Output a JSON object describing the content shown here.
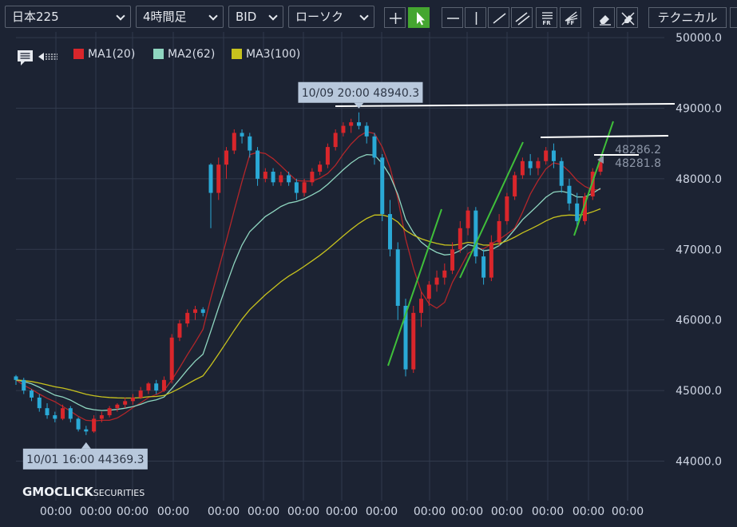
{
  "toolbar": {
    "instrument": "日本225",
    "timeframe": "4時間足",
    "price_type": "BID",
    "chart_style": "ローソク",
    "technical_label": "テクニカル",
    "fr_label": "FR",
    "ff_label": "FF"
  },
  "logo": {
    "main": "GMOCLICK",
    "sub": "SECURITIES"
  },
  "colors": {
    "background": "#1c2333",
    "grid": "#313a4c",
    "up_candle": "#d9262b",
    "down_candle": "#2aa9d6",
    "ma1": "#b3262a",
    "ma2": "#8fd6c0",
    "ma3": "#c7c21e",
    "trendline_green": "#3fbf3a",
    "hline_white": "#ffffff",
    "label_bg": "#b8c8dc"
  },
  "chart_data": {
    "type": "candlestick",
    "ylim": [
      43440,
      50080
    ],
    "yticks": [
      44000,
      45000,
      46000,
      47000,
      48000,
      49000,
      50000
    ],
    "ytick_labels": [
      "44000.0",
      "45000.0",
      "46000.0",
      "47000.0",
      "48000.0",
      "49000.0",
      "50000.0"
    ],
    "xtick_labels": [
      "00:00",
      "00:00",
      "00:00",
      "00:00",
      "00:00",
      "00:00",
      "00:00",
      "00:00",
      "00:00",
      "00:00",
      "00:00",
      "00:00",
      "00:00",
      "00:00",
      "00:00"
    ],
    "legend": [
      {
        "name": "MA1(20)",
        "color": "#d9262b"
      },
      {
        "name": "MA2(62)",
        "color": "#8fd6c0"
      },
      {
        "name": "MA3(100)",
        "color": "#c7c21e"
      }
    ],
    "price_labels": [
      "48286.2",
      "48281.8"
    ],
    "annotations": [
      {
        "text": "10/09 20:00 48940.3",
        "index": 44,
        "value": 48940.3,
        "position": "above"
      },
      {
        "text": "10/01 16:00 44369.3",
        "index": 9,
        "value": 44369.3,
        "position": "below"
      }
    ],
    "candles": [
      [
        45200,
        45220,
        45080,
        45150
      ],
      [
        45150,
        45180,
        44950,
        45000
      ],
      [
        45000,
        45020,
        44850,
        44900
      ],
      [
        44900,
        44950,
        44700,
        44750
      ],
      [
        44750,
        44820,
        44600,
        44650
      ],
      [
        44650,
        44700,
        44550,
        44600
      ],
      [
        44600,
        44800,
        44580,
        44750
      ],
      [
        44750,
        44780,
        44550,
        44600
      ],
      [
        44600,
        44620,
        44420,
        44450
      ],
      [
        44450,
        44500,
        44369.3,
        44420
      ],
      [
        44420,
        44650,
        44400,
        44600
      ],
      [
        44600,
        44700,
        44550,
        44650
      ],
      [
        44650,
        44780,
        44620,
        44750
      ],
      [
        44750,
        44820,
        44700,
        44800
      ],
      [
        44800,
        44900,
        44750,
        44850
      ],
      [
        44850,
        44950,
        44800,
        44900
      ],
      [
        44900,
        45050,
        44880,
        45000
      ],
      [
        45000,
        45120,
        44950,
        45100
      ],
      [
        45100,
        45150,
        44950,
        45000
      ],
      [
        45000,
        45200,
        44980,
        45150
      ],
      [
        45150,
        45800,
        45100,
        45750
      ],
      [
        45750,
        46000,
        45700,
        45950
      ],
      [
        45950,
        46150,
        45900,
        46100
      ],
      [
        46100,
        46200,
        46000,
        46150
      ],
      [
        46150,
        46180,
        46050,
        46100
      ],
      [
        48200,
        48220,
        47300,
        47800
      ],
      [
        47800,
        48300,
        47700,
        48200
      ],
      [
        48200,
        48450,
        48000,
        48400
      ],
      [
        48400,
        48700,
        48350,
        48650
      ],
      [
        48650,
        48700,
        48500,
        48600
      ],
      [
        48600,
        48650,
        48300,
        48400
      ],
      [
        48400,
        48450,
        47900,
        48000
      ],
      [
        48000,
        48150,
        47950,
        48100
      ],
      [
        48100,
        48150,
        47900,
        47950
      ],
      [
        47950,
        48100,
        47900,
        48050
      ],
      [
        48050,
        48100,
        47900,
        47950
      ],
      [
        47950,
        48000,
        47700,
        47800
      ],
      [
        47800,
        48000,
        47750,
        47950
      ],
      [
        47950,
        48150,
        47900,
        48100
      ],
      [
        48100,
        48250,
        48050,
        48200
      ],
      [
        48200,
        48500,
        48150,
        48450
      ],
      [
        48450,
        48700,
        48400,
        48650
      ],
      [
        48650,
        48800,
        48600,
        48750
      ],
      [
        48750,
        48850,
        48650,
        48800
      ],
      [
        48800,
        48940.3,
        48700,
        48750
      ],
      [
        48750,
        48800,
        48500,
        48600
      ],
      [
        48600,
        48650,
        48200,
        48300
      ],
      [
        48300,
        48350,
        47400,
        47500
      ],
      [
        47500,
        47700,
        46900,
        47000
      ],
      [
        47000,
        47100,
        46000,
        46200
      ],
      [
        46200,
        46300,
        45200,
        45300
      ],
      [
        45300,
        46200,
        45250,
        46100
      ],
      [
        46100,
        46400,
        45900,
        46300
      ],
      [
        46300,
        46550,
        46200,
        46500
      ],
      [
        46500,
        46700,
        46400,
        46600
      ],
      [
        46600,
        46800,
        46500,
        46700
      ],
      [
        46700,
        47100,
        46650,
        47000
      ],
      [
        47000,
        47400,
        46950,
        47300
      ],
      [
        47300,
        47600,
        47200,
        47550
      ],
      [
        47550,
        47600,
        46800,
        46900
      ],
      [
        46900,
        47000,
        46500,
        46600
      ],
      [
        46600,
        47200,
        46550,
        47100
      ],
      [
        47100,
        47500,
        47050,
        47400
      ],
      [
        47400,
        47800,
        47350,
        47750
      ],
      [
        47750,
        48100,
        47700,
        48050
      ],
      [
        48050,
        48300,
        48000,
        48250
      ],
      [
        48250,
        48350,
        48050,
        48150
      ],
      [
        48150,
        48300,
        48050,
        48250
      ],
      [
        48250,
        48450,
        48200,
        48400
      ],
      [
        48400,
        48500,
        48150,
        48250
      ],
      [
        48250,
        48300,
        47800,
        47900
      ],
      [
        47900,
        48000,
        47550,
        47650
      ],
      [
        47650,
        47800,
        47300,
        47400
      ],
      [
        47400,
        47800,
        47350,
        47750
      ],
      [
        47750,
        48150,
        47700,
        48100
      ],
      [
        48100,
        48300,
        48050,
        48282
      ]
    ]
  }
}
